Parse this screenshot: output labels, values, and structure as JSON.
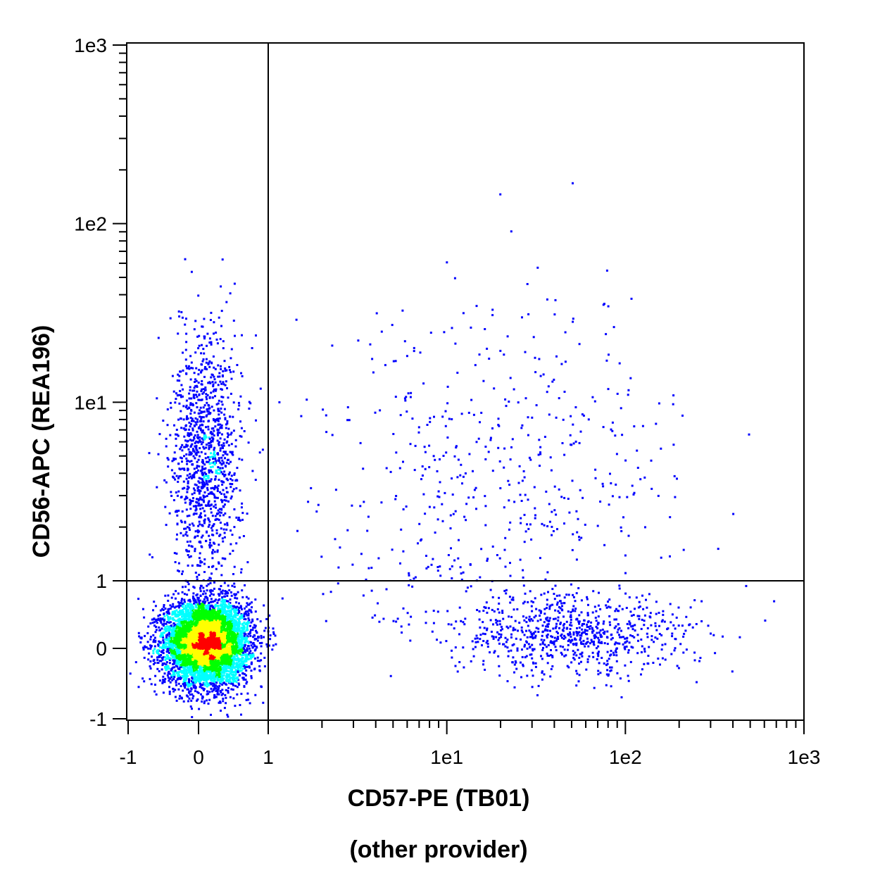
{
  "chart_data": {
    "type": "scatter",
    "title": "",
    "xlabel": "CD57-PE (TB01)",
    "xlabel_sub": "(other provider)",
    "ylabel": "CD56-APC (REA196)",
    "x_scale": "biexponential (linear below 1, log above 1)",
    "y_scale": "biexponential (linear below 1, log above 1)",
    "xlim": [
      -1,
      1000
    ],
    "ylim": [
      -1,
      1000
    ],
    "x_ticks": [
      {
        "value": -1,
        "label": "-1"
      },
      {
        "value": 0,
        "label": "0"
      },
      {
        "value": 1,
        "label": "1"
      },
      {
        "value": 10,
        "label": "1e1"
      },
      {
        "value": 100,
        "label": "1e2"
      },
      {
        "value": 1000,
        "label": "1e3"
      }
    ],
    "y_ticks": [
      {
        "value": -1,
        "label": "-1"
      },
      {
        "value": 0,
        "label": "0"
      },
      {
        "value": 1,
        "label": "1"
      },
      {
        "value": 10,
        "label": "1e1"
      },
      {
        "value": 100,
        "label": "1e2"
      },
      {
        "value": 1000,
        "label": "1e3"
      }
    ],
    "quadrant_gates": {
      "x": 1,
      "y": 1
    },
    "density_colors": [
      "#0000ff",
      "#00ffff",
      "#00ff00",
      "#ffff00",
      "#ff0000"
    ],
    "populations": [
      {
        "x_center": 0.1,
        "y_center": 0.1,
        "x_spread": 0.3,
        "y_spread": 0.3,
        "relative_size": 1.0,
        "note": "dense core (double negative)"
      },
      {
        "x_center": 0.1,
        "y_center": 5,
        "x_spread": 0.25,
        "y_spread_log10": 0.35,
        "relative_size": 0.18
      },
      {
        "x_center": 50,
        "y_center": 0.2,
        "x_spread_log10": 0.35,
        "y_spread": 0.3,
        "relative_size": 0.12
      },
      {
        "x_center": 20,
        "y_center": 4,
        "x_spread_log10": 0.5,
        "y_spread_log10": 0.5,
        "relative_size": 0.08
      }
    ],
    "grid": false,
    "legend": "none"
  }
}
